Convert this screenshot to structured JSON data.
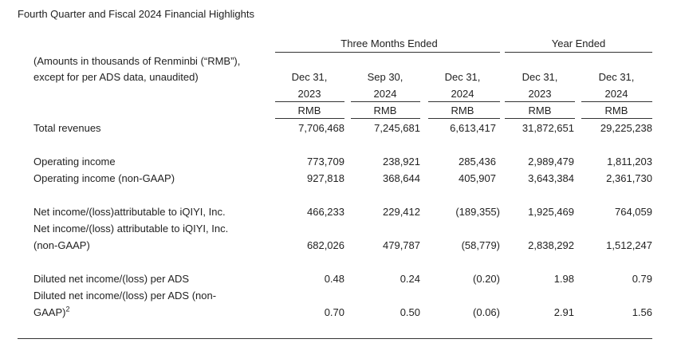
{
  "title": "Fourth Quarter and Fiscal 2024 Financial Highlights",
  "groups": {
    "three_months": "Three Months Ended",
    "year": "Year Ended"
  },
  "units_note": {
    "line1": "(Amounts in thousands of Renminbi (“RMB”),",
    "line2": "except for per ADS data, unaudited)"
  },
  "columns": [
    {
      "line1": "Dec 31,",
      "line2": "2023",
      "currency": "RMB"
    },
    {
      "line1": "Sep 30,",
      "line2": "2024",
      "currency": "RMB"
    },
    {
      "line1": "Dec 31,",
      "line2": "2024",
      "currency": "RMB"
    },
    {
      "line1": "Dec 31,",
      "line2": "2023",
      "currency": "RMB"
    },
    {
      "line1": "Dec 31,",
      "line2": "2024",
      "currency": "RMB"
    }
  ],
  "rows": [
    {
      "label": "Total revenues",
      "values": [
        "7,706,468",
        "7,245,681",
        "6,613,417",
        "31,872,651",
        "29,225,238"
      ]
    },
    {
      "label": "Operating income",
      "values": [
        "773,709",
        "238,921",
        "285,436",
        "2,989,479",
        "1,811,203"
      ]
    },
    {
      "label": "Operating income (non-GAAP)",
      "values": [
        "927,818",
        "368,644",
        "405,907",
        "3,643,384",
        "2,361,730"
      ]
    },
    {
      "label": "Net income/(loss)attributable to iQIYI, Inc.",
      "values": [
        "466,233",
        "229,412",
        "(189,355)",
        "1,925,469",
        "764,059"
      ]
    },
    {
      "label_line1": "Net income/(loss) attributable to iQIYI, Inc.",
      "label_line2": "(non-GAAP)",
      "values": [
        "682,026",
        "479,787",
        "(58,779)",
        "2,838,292",
        "1,512,247"
      ]
    },
    {
      "label": "Diluted net income/(loss) per ADS",
      "values": [
        "0.48",
        "0.24",
        "(0.20)",
        "1.98",
        "0.79"
      ]
    },
    {
      "label_line1": "Diluted net income/(loss) per ADS (non-",
      "label_line2": "GAAP)",
      "label_sup": "2",
      "values": [
        "0.70",
        "0.50",
        "(0.06)",
        "2.91",
        "1.56"
      ]
    }
  ]
}
